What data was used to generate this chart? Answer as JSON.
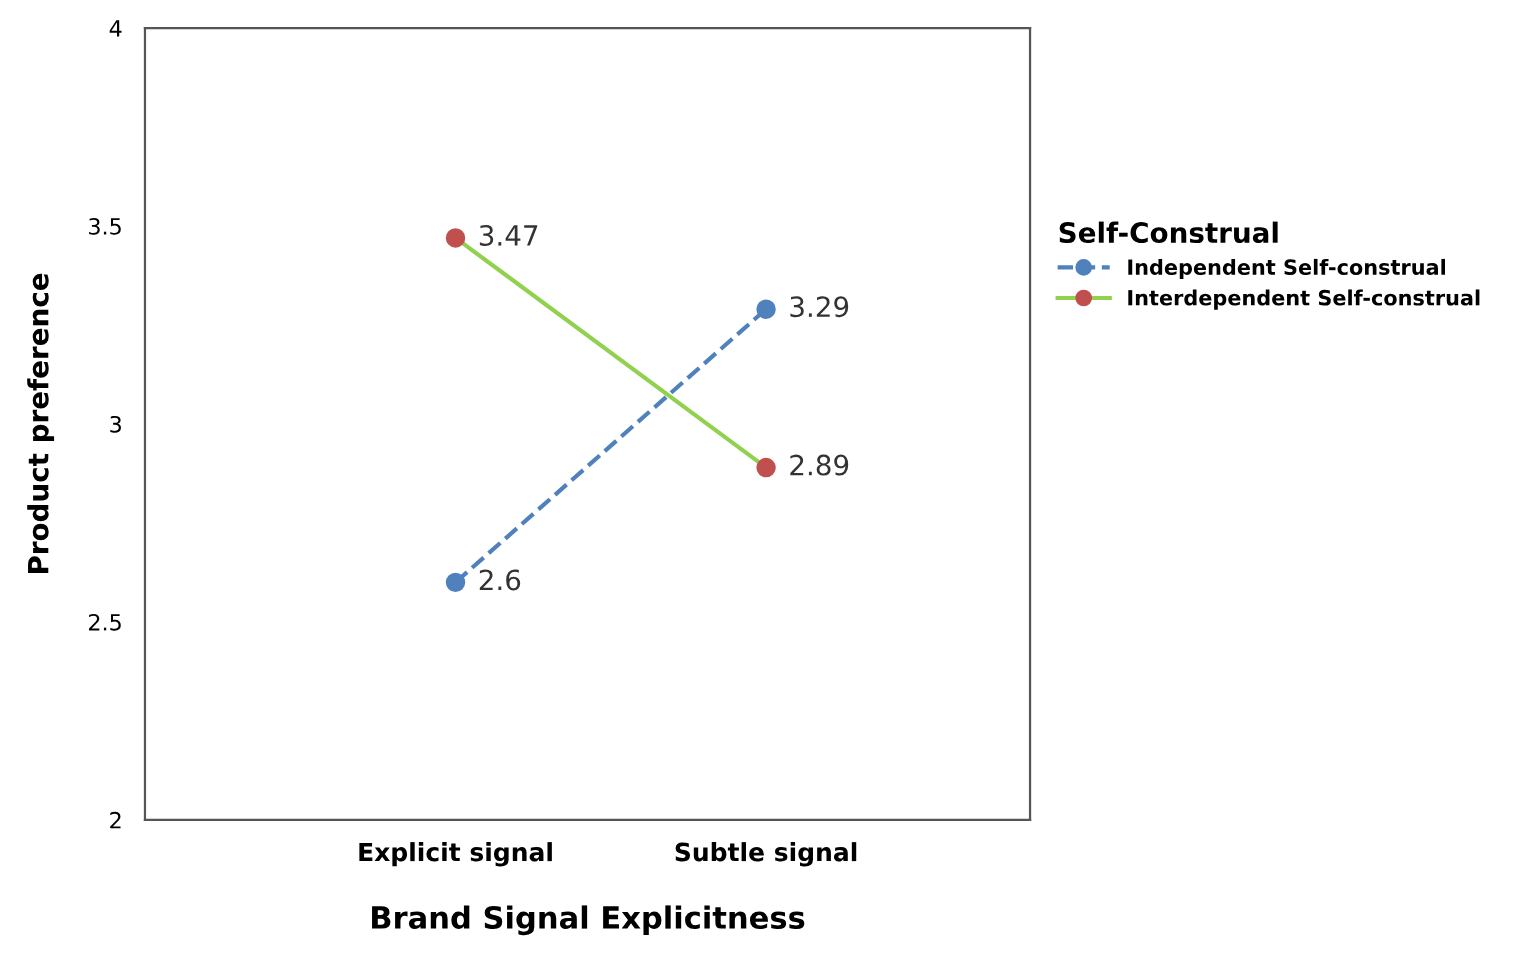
{
  "chart_data": {
    "type": "line",
    "xlabel": "Brand Signal Explicitness",
    "ylabel": "Product preference",
    "legend_title": "Self-Construal",
    "categories": [
      "Explicit signal",
      "Subtle signal"
    ],
    "series": [
      {
        "name": "Independent Self-construal",
        "color": "#4f81bd",
        "colors": [
          "#4f81bd",
          "#4f81bd"
        ],
        "line_style": "dashed",
        "values": [
          2.6,
          3.29
        ]
      },
      {
        "name": "Interdependent Self-construal",
        "color": "#92d050",
        "colors": [
          "#c0504d",
          "#c0504d"
        ],
        "line_style": "solid",
        "values": [
          3.47,
          2.89
        ]
      }
    ],
    "ylim": [
      2,
      4
    ],
    "yticks": [
      2,
      2.5,
      3,
      3.5,
      4
    ],
    "marker": "circle",
    "data_labels": true,
    "grid": false,
    "legend": "right"
  }
}
